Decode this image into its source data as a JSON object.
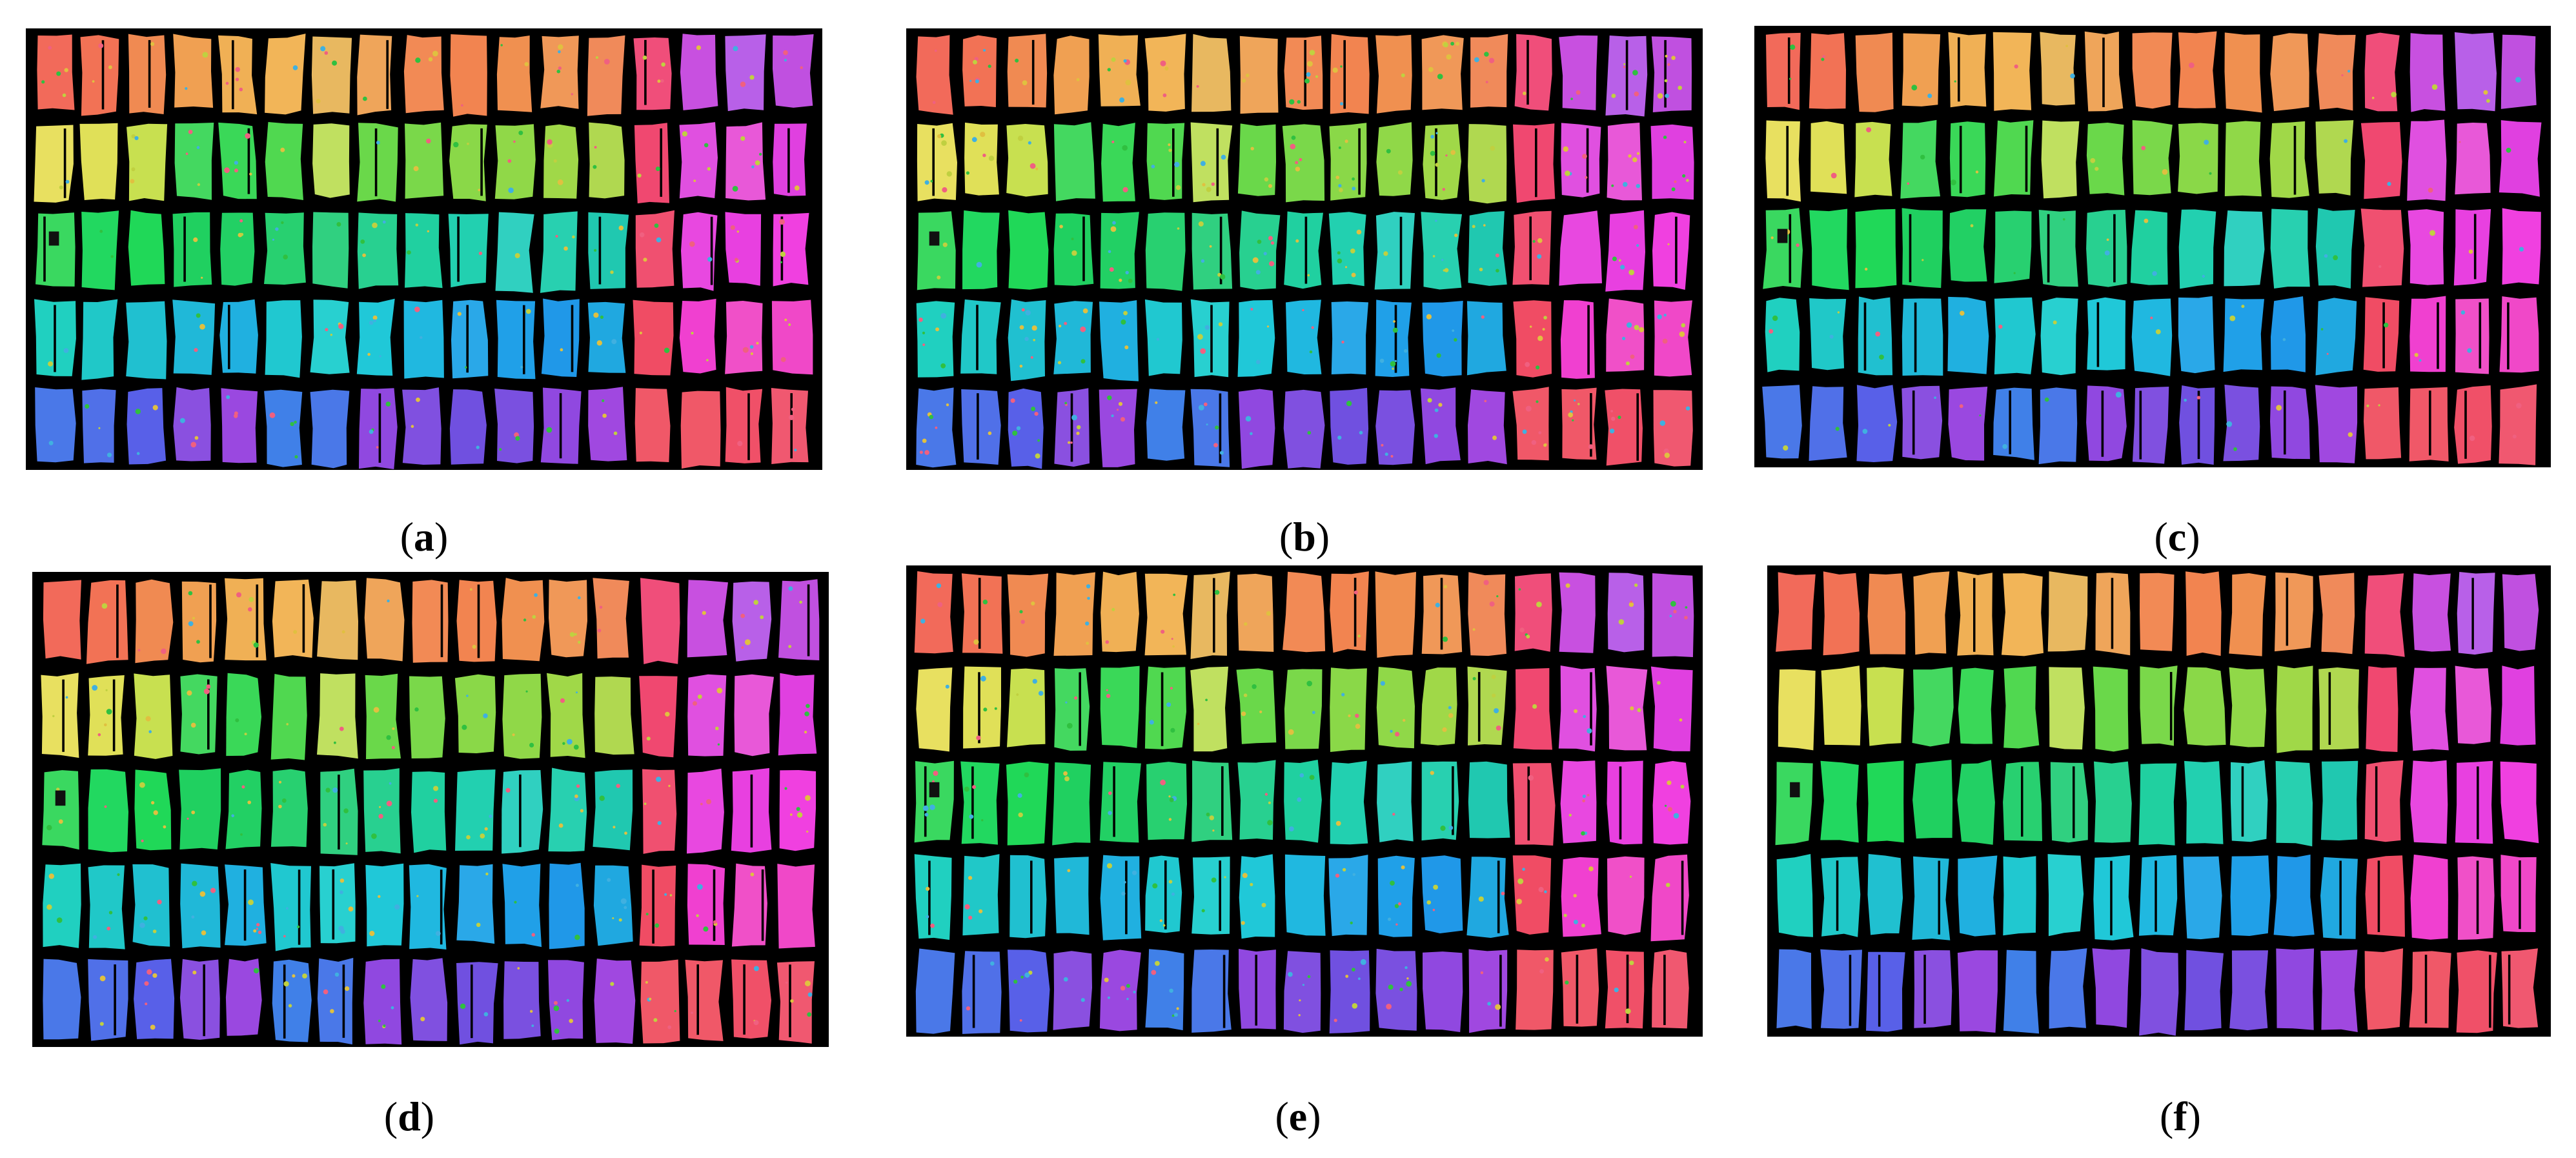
{
  "figure": {
    "panels": [
      {
        "label": "a",
        "noise": 0.35
      },
      {
        "label": "b",
        "noise": 0.55
      },
      {
        "label": "c",
        "noise": 0.18
      },
      {
        "label": "d",
        "noise": 0.4
      },
      {
        "label": "e",
        "noise": 0.45
      },
      {
        "label": "f",
        "noise": 0.03
      }
    ],
    "grid": {
      "rows": 5,
      "columns": 17
    },
    "background_color": "#000000",
    "row_colors": [
      [
        "#f26a5a",
        "#f27255",
        "#f08a52",
        "#f0a052",
        "#f0b055",
        "#f2b558",
        "#e8b860",
        "#efa55a",
        "#f28a55",
        "#f28450",
        "#f09050",
        "#f09858",
        "#f08a5a",
        "#f04e7a",
        "#c850e0",
        "#b860e8",
        "#c050e0"
      ],
      [
        "#e8e060",
        "#e0e058",
        "#c8e050",
        "#44d860",
        "#3ad858",
        "#50d850",
        "#c0e060",
        "#6ad84a",
        "#7ad84a",
        "#8ad848",
        "#90d848",
        "#a0d848",
        "#b0d850",
        "#f04870",
        "#e050e0",
        "#e858d8",
        "#e040e0"
      ],
      [
        "#3ad860",
        "#22d860",
        "#20d858",
        "#20d060",
        "#22d064",
        "#28d070",
        "#30d080",
        "#28d090",
        "#20d0a0",
        "#22d0b0",
        "#30d0c0",
        "#28d0b0",
        "#20c8b0",
        "#f05070",
        "#e848e0",
        "#e840e0",
        "#f040e0"
      ],
      [
        "#20d0c0",
        "#20c8c8",
        "#20c0d0",
        "#20b8d8",
        "#20b0e0",
        "#20c8d0",
        "#28d0d0",
        "#20c8d8",
        "#20b8e0",
        "#2aa8e8",
        "#20a0e8",
        "#2098e8",
        "#20a8e0",
        "#f04c64",
        "#f040d0",
        "#f050c8",
        "#f048c8"
      ],
      [
        "#4a78e8",
        "#5070e8",
        "#5860e8",
        "#8a50e0",
        "#9a48e0",
        "#4080e8",
        "#4a78e8",
        "#9048e0",
        "#8050e0",
        "#7050e0",
        "#7a50e0",
        "#9048e0",
        "#a048e0",
        "#f05868",
        "#f05868",
        "#f05068",
        "#f05870"
      ]
    ]
  }
}
